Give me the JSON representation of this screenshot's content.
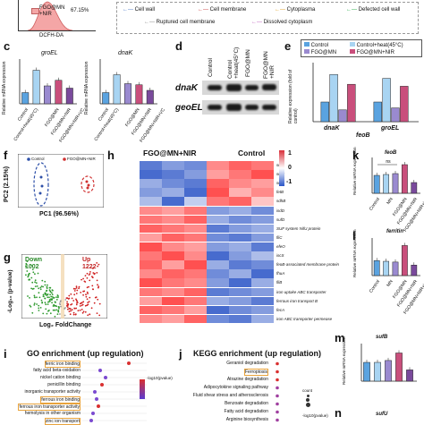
{
  "top": {
    "flow_percent": "67.15%",
    "flow_legend": "FGO@MN +NIR",
    "flow_xlabel": "DCFH-DA",
    "legend_items": [
      "Cell wall",
      "Cell membrane",
      "Cytoplasma",
      "Defected cell wall",
      "Ruptured cell membrane",
      "Dissolved cytoplasm"
    ]
  },
  "panel_c": {
    "letter": "c",
    "ylabel": "Relative mRNA expression",
    "groEL_title": "groEL",
    "dnaK_title": "dnaK",
    "categories": [
      "Control",
      "Control+heat(45°C)",
      "FGO@MN",
      "FGO@MN+NIR",
      "FGO@MN+NIR+VC"
    ],
    "colors": [
      "#5aa3e0",
      "#a8d4f2",
      "#9a8ad0",
      "#c94f7c",
      "#7a4a9c"
    ]
  },
  "panel_d": {
    "letter": "d",
    "columns": [
      "Control",
      "Control +heat(45°C)",
      "FGO@MN",
      "FGO@MN +NIR"
    ],
    "rows": [
      "dnaK",
      "geoEL"
    ]
  },
  "panel_e": {
    "letter": "e",
    "legend": [
      "Control",
      "Control+heat(45°C)",
      "FGO@MN",
      "FGO@MN+NIR"
    ],
    "ylabel": "Relative expression (fold of control)",
    "groups": [
      "dnaK",
      "groEL"
    ],
    "xlabel_extra": "feoB"
  },
  "panel_f": {
    "letter": "f",
    "legend": [
      "Control",
      "FGO@MN+NIR"
    ],
    "xlabel": "PC1 (96.56%)",
    "ylabel": "PC2 (2.15%)"
  },
  "panel_h": {
    "letter": "h",
    "group1": "FGO@MN+NIR",
    "group2": "Control",
    "scale": [
      "1",
      "0",
      "-1"
    ],
    "genes": [
      "sufA",
      "sufC",
      "sufB",
      "fetB",
      "sdhB",
      "isdD",
      "sufD",
      "SUF system NifU protein",
      "fliC",
      "efeO",
      "iscS",
      "feoB-associated membrane protein",
      "fhuA",
      "fliB",
      "iron uptake ABC transporter",
      "ferrous iron transport B",
      "fecA",
      "iron ABC transporter permease"
    ]
  },
  "panel_g": {
    "letter": "g",
    "down_label": "Down",
    "down_count": "1002",
    "up_label": "Up",
    "up_count": "1222",
    "xlabel": "Log₂ FoldChange",
    "ylabel": "-Log₁₀ (p-value)"
  },
  "panel_i": {
    "letter": "i",
    "title": "GO enrichment (up regulation)",
    "terms": [
      "ferric iron binding",
      "fatty acid beta-oxidation",
      "nickel cation binding",
      "penicillin binding",
      "inorganic transporter activity",
      "ferrous iron binding",
      "ferrous iron transporter activity",
      "hemolysis in other organism",
      "zinc ion transport"
    ],
    "legend": "-log10(pvalue)"
  },
  "panel_j": {
    "letter": "j",
    "title": "KEGG enrichment (up regulation)",
    "terms": [
      "Geraniol degradation",
      "Ferroptosis",
      "Atrazine degradation",
      "Adipocytokine signaling pathway",
      "Fluid shear stress and atherosclerosis",
      "Benzoate degradation",
      "Fatty acid degradation",
      "Arginine biosynthesis"
    ],
    "legend_count": "count",
    "legend_p": "-log10(pvalue)"
  },
  "panel_k": {
    "letter": "k",
    "title": "feoB",
    "ylabel": "Relative mRNA expression",
    "categories": [
      "Control",
      "MN",
      "FGO@MN",
      "FGO@MN+NIR",
      "FGO@MN+NIR+VC"
    ],
    "ns": "ns"
  },
  "panel_l": {
    "letter": "l",
    "title": "ferritin",
    "ylabel": "Relative mRNA expression",
    "categories": [
      "Control",
      "MN",
      "FGO@MN",
      "FGO@MN+NIR",
      "FGO@MN+NIR+VC"
    ]
  },
  "panel_m": {
    "letter": "m",
    "title": "sufB",
    "ylabel": "Relative mRNA expression"
  },
  "panel_n": {
    "letter": "n",
    "title": "sufU"
  },
  "chart_data": [
    {
      "type": "bar",
      "title": "groEL",
      "categories": [
        "Control",
        "Control+heat(45°C)",
        "FGO@MN",
        "FGO@MN+NIR",
        "FGO@MN+NIR+VC"
      ],
      "values": [
        1.0,
        3.0,
        1.6,
        2.1,
        1.4
      ],
      "ylim": [
        0,
        4
      ]
    },
    {
      "type": "bar",
      "title": "dnaK",
      "categories": [
        "Control",
        "Control+heat(45°C)",
        "FGO@MN",
        "FGO@MN+NIR",
        "FGO@MN+NIR+VC"
      ],
      "values": [
        1.0,
        2.6,
        1.8,
        1.7,
        1.2
      ],
      "ylim": [
        0,
        4
      ]
    },
    {
      "type": "bar",
      "title": "",
      "categories": [
        "dnaK",
        "groEL"
      ],
      "series": [
        {
          "name": "Control",
          "values": [
            1.0,
            1.0
          ]
        },
        {
          "name": "Control+heat(45°C)",
          "values": [
            2.4,
            2.2
          ]
        },
        {
          "name": "FGO@MN",
          "values": [
            0.6,
            0.7
          ]
        },
        {
          "name": "FGO@MN+NIR",
          "values": [
            1.9,
            1.8
          ]
        }
      ],
      "ylim": [
        0,
        3
      ]
    },
    {
      "type": "bar",
      "title": "feoB",
      "categories": [
        "Control",
        "MN",
        "FGO@MN",
        "FGO@MN+NIR",
        "FGO@MN+NIR+VC"
      ],
      "values": [
        1.0,
        1.05,
        1.1,
        1.6,
        0.6
      ],
      "ylim": [
        0,
        2
      ]
    },
    {
      "type": "bar",
      "title": "ferritin",
      "categories": [
        "Control",
        "MN",
        "FGO@MN",
        "FGO@MN+NIR",
        "FGO@MN+NIR+VC"
      ],
      "values": [
        1.0,
        0.95,
        0.9,
        2.0,
        0.7
      ],
      "ylim": [
        0,
        2.5
      ]
    },
    {
      "type": "bar",
      "title": "sufB",
      "categories": [
        "Control",
        "MN",
        "FGO@MN",
        "FGO@MN+NIR",
        "FGO@MN+NIR+VC"
      ],
      "values": [
        1.0,
        1.0,
        1.1,
        1.5,
        0.6
      ],
      "ylim": [
        0,
        2
      ]
    }
  ]
}
